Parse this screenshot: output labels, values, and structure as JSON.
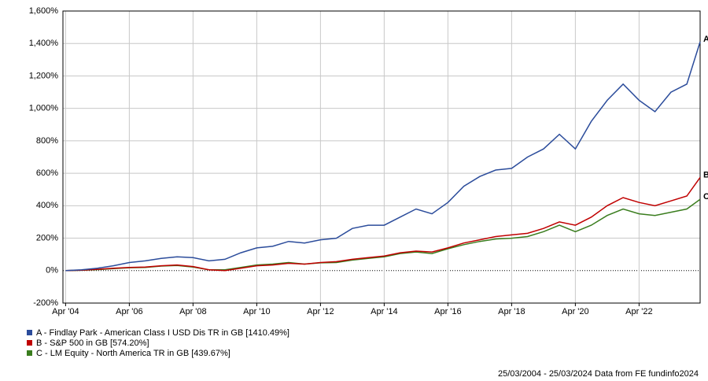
{
  "chart_data": {
    "type": "line",
    "x": [
      "2004-04",
      "2004-10",
      "2005-04",
      "2005-10",
      "2006-04",
      "2006-10",
      "2007-04",
      "2007-10",
      "2008-04",
      "2008-10",
      "2009-04",
      "2009-10",
      "2010-04",
      "2010-10",
      "2011-04",
      "2011-10",
      "2012-04",
      "2012-10",
      "2013-04",
      "2013-10",
      "2014-04",
      "2014-10",
      "2015-04",
      "2015-10",
      "2016-04",
      "2016-10",
      "2017-04",
      "2017-10",
      "2018-04",
      "2018-10",
      "2019-04",
      "2019-10",
      "2020-04",
      "2020-10",
      "2021-04",
      "2021-10",
      "2022-04",
      "2022-10",
      "2023-04",
      "2023-10",
      "2024-03"
    ],
    "series": [
      {
        "name": "A - Findlay Park - American Class I USD Dis TR in GB [1410.49%]",
        "label": "A",
        "color": "#2b4c9b",
        "values": [
          0,
          5,
          15,
          30,
          50,
          60,
          75,
          85,
          80,
          60,
          70,
          110,
          140,
          150,
          180,
          170,
          190,
          200,
          260,
          280,
          280,
          330,
          380,
          350,
          420,
          520,
          580,
          620,
          630,
          700,
          750,
          840,
          750,
          920,
          1050,
          1150,
          1050,
          980,
          1100,
          1150,
          1410.49
        ]
      },
      {
        "name": "B - S&P 500 in GB [574.20%]",
        "label": "B",
        "color": "#c00000",
        "values": [
          0,
          3,
          8,
          15,
          20,
          22,
          30,
          35,
          25,
          5,
          0,
          15,
          30,
          35,
          45,
          40,
          50,
          55,
          70,
          80,
          90,
          110,
          120,
          115,
          140,
          170,
          190,
          210,
          220,
          230,
          260,
          300,
          280,
          330,
          400,
          450,
          420,
          400,
          430,
          460,
          574.2
        ]
      },
      {
        "name": "C - LM Equity - North America TR in GB [439.67%]",
        "label": "C",
        "color": "#3a7d1e",
        "values": [
          0,
          2,
          6,
          12,
          18,
          20,
          28,
          32,
          22,
          5,
          5,
          20,
          35,
          40,
          50,
          40,
          48,
          50,
          65,
          75,
          85,
          105,
          115,
          105,
          135,
          160,
          180,
          195,
          200,
          210,
          240,
          280,
          240,
          280,
          340,
          380,
          350,
          340,
          360,
          380,
          439.67
        ]
      }
    ],
    "xlim": [
      "2004-03",
      "2024-03"
    ],
    "xticks": [
      {
        "value": "2004-04",
        "label": "Apr '04"
      },
      {
        "value": "2006-04",
        "label": "Apr '06"
      },
      {
        "value": "2008-04",
        "label": "Apr '08"
      },
      {
        "value": "2010-04",
        "label": "Apr '10"
      },
      {
        "value": "2012-04",
        "label": "Apr '12"
      },
      {
        "value": "2014-04",
        "label": "Apr '14"
      },
      {
        "value": "2016-04",
        "label": "Apr '16"
      },
      {
        "value": "2018-04",
        "label": "Apr '18"
      },
      {
        "value": "2020-04",
        "label": "Apr '20"
      },
      {
        "value": "2022-04",
        "label": "Apr '22"
      }
    ],
    "ylim": [
      -200,
      1600
    ],
    "yticks": [
      {
        "value": -200,
        "label": "-200%"
      },
      {
        "value": 0,
        "label": "0%"
      },
      {
        "value": 200,
        "label": "200%"
      },
      {
        "value": 400,
        "label": "400%"
      },
      {
        "value": 600,
        "label": "600%"
      },
      {
        "value": 800,
        "label": "800%"
      },
      {
        "value": 1000,
        "label": "1,000%"
      },
      {
        "value": 1200,
        "label": "1,200%"
      },
      {
        "value": 1400,
        "label": "1,400%"
      },
      {
        "value": 1600,
        "label": "1,600%"
      }
    ],
    "grid": true,
    "footer": "25/03/2004 - 25/03/2024 Data from FE fundinfo2024"
  }
}
